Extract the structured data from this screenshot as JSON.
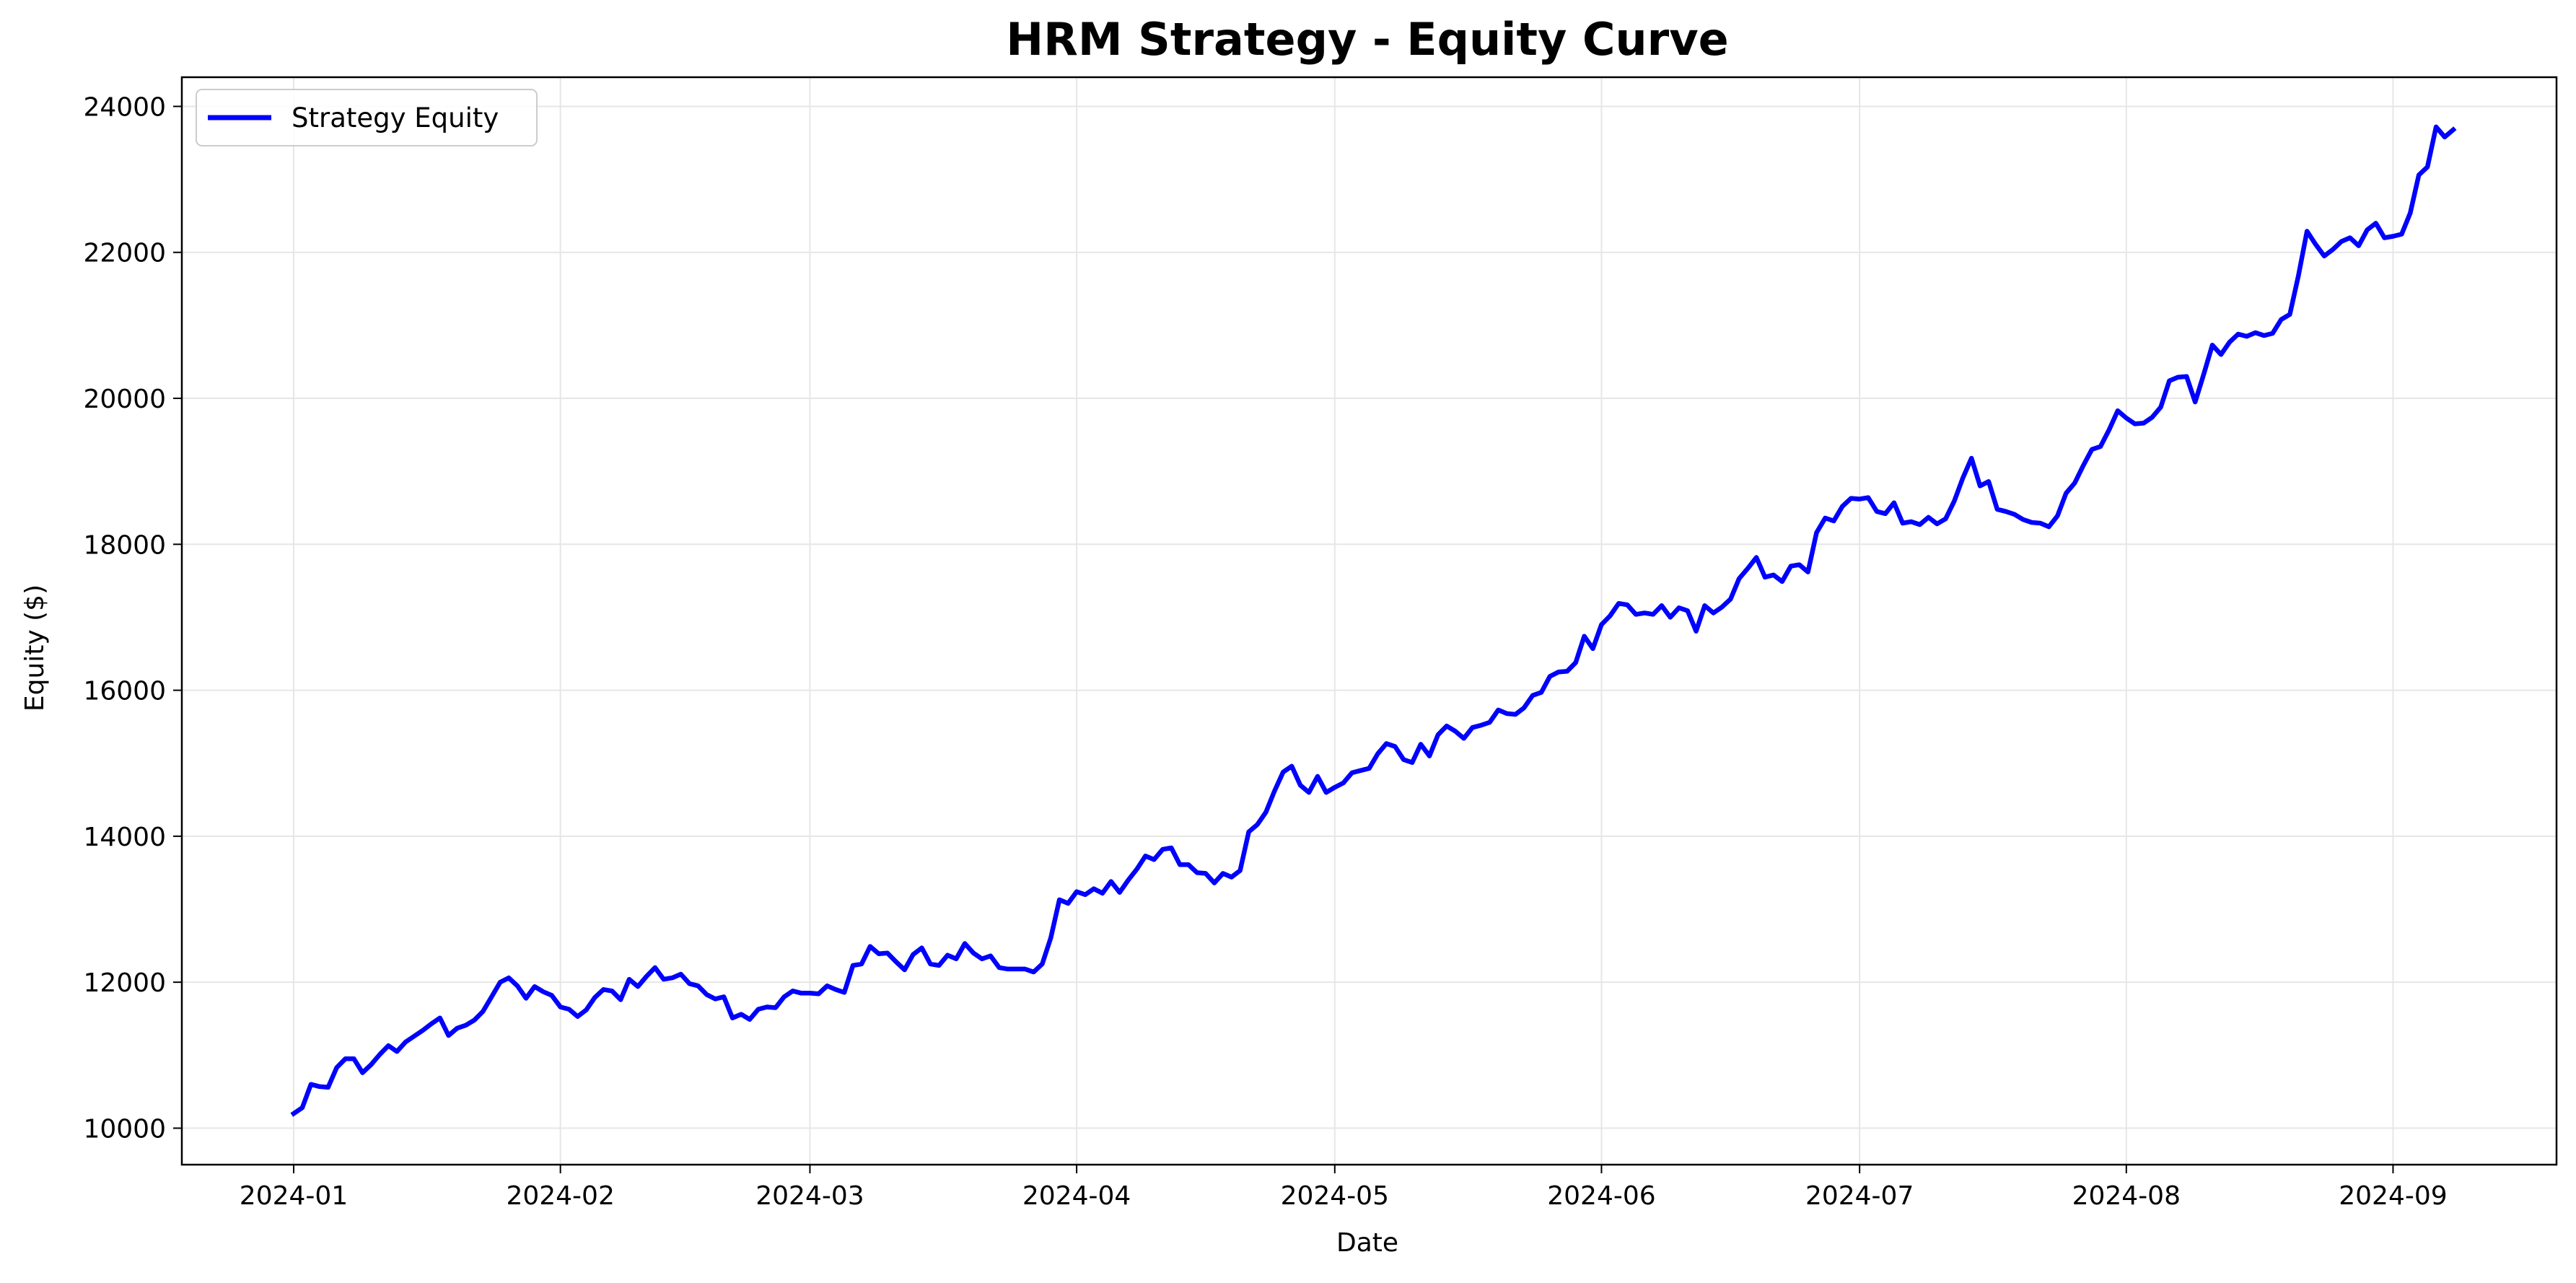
{
  "chart_data": {
    "type": "line",
    "title": "HRM Strategy - Equity Curve",
    "xlabel": "Date",
    "ylabel": "Equity ($)",
    "x_ticks": [
      "2024-01",
      "2024-02",
      "2024-03",
      "2024-04",
      "2024-05",
      "2024-06",
      "2024-07",
      "2024-08",
      "2024-09"
    ],
    "y_ticks": [
      10000,
      12000,
      14000,
      16000,
      18000,
      20000,
      22000,
      24000
    ],
    "xlim": [
      "2023-12-19",
      "2024-09-20"
    ],
    "ylim": [
      9500,
      24400
    ],
    "grid": true,
    "legend": {
      "position": "top-left",
      "entries": [
        "Strategy Equity"
      ]
    },
    "colors": {
      "line": "#0000ff",
      "grid": "#e6e6e6",
      "axes": "#000000"
    },
    "series": [
      {
        "name": "Strategy Equity",
        "x": [
          "2024-01-01",
          "2024-01-02",
          "2024-01-03",
          "2024-01-04",
          "2024-01-05",
          "2024-01-06",
          "2024-01-07",
          "2024-01-08",
          "2024-01-09",
          "2024-01-10",
          "2024-01-11",
          "2024-01-12",
          "2024-01-13",
          "2024-01-14",
          "2024-01-15",
          "2024-01-16",
          "2024-01-17",
          "2024-01-18",
          "2024-01-19",
          "2024-01-20",
          "2024-01-21",
          "2024-01-22",
          "2024-01-23",
          "2024-01-24",
          "2024-01-25",
          "2024-01-26",
          "2024-01-27",
          "2024-01-28",
          "2024-01-29",
          "2024-01-30",
          "2024-01-31",
          "2024-02-01",
          "2024-02-02",
          "2024-02-03",
          "2024-02-04",
          "2024-02-05",
          "2024-02-06",
          "2024-02-07",
          "2024-02-08",
          "2024-02-09",
          "2024-02-10",
          "2024-02-11",
          "2024-02-12",
          "2024-02-13",
          "2024-02-14",
          "2024-02-15",
          "2024-02-16",
          "2024-02-17",
          "2024-02-18",
          "2024-02-19",
          "2024-02-20",
          "2024-02-21",
          "2024-02-22",
          "2024-02-23",
          "2024-02-24",
          "2024-02-25",
          "2024-02-26",
          "2024-02-27",
          "2024-02-28",
          "2024-02-29",
          "2024-03-01",
          "2024-03-02",
          "2024-03-03",
          "2024-03-04",
          "2024-03-05",
          "2024-03-06",
          "2024-03-07",
          "2024-03-08",
          "2024-03-09",
          "2024-03-10",
          "2024-03-11",
          "2024-03-12",
          "2024-03-13",
          "2024-03-14",
          "2024-03-15",
          "2024-03-16",
          "2024-03-17",
          "2024-03-18",
          "2024-03-19",
          "2024-03-20",
          "2024-03-21",
          "2024-03-22",
          "2024-03-23",
          "2024-03-24",
          "2024-03-25",
          "2024-03-26",
          "2024-03-27",
          "2024-03-28",
          "2024-03-29",
          "2024-03-30",
          "2024-03-31",
          "2024-04-01",
          "2024-04-02",
          "2024-04-03",
          "2024-04-04",
          "2024-04-05",
          "2024-04-06",
          "2024-04-07",
          "2024-04-08",
          "2024-04-09",
          "2024-04-10",
          "2024-04-11",
          "2024-04-12",
          "2024-04-13",
          "2024-04-14",
          "2024-04-15",
          "2024-04-16",
          "2024-04-17",
          "2024-04-18",
          "2024-04-19",
          "2024-04-20",
          "2024-04-21",
          "2024-04-22",
          "2024-04-23",
          "2024-04-24",
          "2024-04-25",
          "2024-04-26",
          "2024-04-27",
          "2024-04-28",
          "2024-04-29",
          "2024-04-30",
          "2024-05-01",
          "2024-05-02",
          "2024-05-03",
          "2024-05-04",
          "2024-05-05",
          "2024-05-06",
          "2024-05-07",
          "2024-05-08",
          "2024-05-09",
          "2024-05-10",
          "2024-05-11",
          "2024-05-12",
          "2024-05-13",
          "2024-05-14",
          "2024-05-15",
          "2024-05-16",
          "2024-05-17",
          "2024-05-18",
          "2024-05-19",
          "2024-05-20",
          "2024-05-21",
          "2024-05-22",
          "2024-05-23",
          "2024-05-24",
          "2024-05-25",
          "2024-05-26",
          "2024-05-27",
          "2024-05-28",
          "2024-05-29",
          "2024-05-30",
          "2024-05-31",
          "2024-06-01",
          "2024-06-02",
          "2024-06-03",
          "2024-06-04",
          "2024-06-05",
          "2024-06-06",
          "2024-06-07",
          "2024-06-08",
          "2024-06-09",
          "2024-06-10",
          "2024-06-11",
          "2024-06-12",
          "2024-06-13",
          "2024-06-14",
          "2024-06-15",
          "2024-06-16",
          "2024-06-17",
          "2024-06-18",
          "2024-06-19",
          "2024-06-20",
          "2024-06-21",
          "2024-06-22",
          "2024-06-23",
          "2024-06-24",
          "2024-06-25",
          "2024-06-26",
          "2024-06-27",
          "2024-06-28",
          "2024-06-29",
          "2024-06-30",
          "2024-07-01",
          "2024-07-02",
          "2024-07-03",
          "2024-07-04",
          "2024-07-05",
          "2024-07-06",
          "2024-07-07",
          "2024-07-08",
          "2024-07-09",
          "2024-07-10",
          "2024-07-11",
          "2024-07-12",
          "2024-07-13",
          "2024-07-14",
          "2024-07-15",
          "2024-07-16",
          "2024-07-17",
          "2024-07-18",
          "2024-07-19",
          "2024-07-20",
          "2024-07-21",
          "2024-07-22",
          "2024-07-23",
          "2024-07-24",
          "2024-07-25",
          "2024-07-26",
          "2024-07-27",
          "2024-07-28",
          "2024-07-29",
          "2024-07-30",
          "2024-07-31",
          "2024-08-01",
          "2024-08-02",
          "2024-08-03",
          "2024-08-04",
          "2024-08-05",
          "2024-08-06",
          "2024-08-07",
          "2024-08-08",
          "2024-08-09",
          "2024-08-10",
          "2024-08-11",
          "2024-08-12",
          "2024-08-13",
          "2024-08-14",
          "2024-08-15",
          "2024-08-16",
          "2024-08-17",
          "2024-08-18",
          "2024-08-19",
          "2024-08-20",
          "2024-08-21",
          "2024-08-22",
          "2024-08-23",
          "2024-08-24",
          "2024-08-25",
          "2024-08-26",
          "2024-08-27",
          "2024-08-28",
          "2024-08-29",
          "2024-08-30",
          "2024-08-31",
          "2024-09-01",
          "2024-09-02",
          "2024-09-03",
          "2024-09-04",
          "2024-09-05",
          "2024-09-06",
          "2024-09-07",
          "2024-09-08"
        ],
        "y": [
          10200,
          10280,
          10600,
          10570,
          10560,
          10830,
          10950,
          10950,
          10760,
          10870,
          11010,
          11130,
          11050,
          11180,
          11260,
          11340,
          11430,
          11510,
          11270,
          11370,
          11410,
          11480,
          11600,
          11800,
          12000,
          12060,
          11950,
          11780,
          11940,
          11870,
          11820,
          11660,
          11630,
          11530,
          11620,
          11790,
          11900,
          11880,
          11760,
          12040,
          11940,
          12080,
          12200,
          12040,
          12060,
          12110,
          11980,
          11950,
          11830,
          11770,
          11800,
          11510,
          11560,
          11490,
          11630,
          11660,
          11650,
          11800,
          11880,
          11850,
          11850,
          11840,
          11950,
          11900,
          11860,
          12230,
          12250,
          12490,
          12390,
          12400,
          12280,
          12170,
          12380,
          12470,
          12250,
          12230,
          12370,
          12320,
          12530,
          12400,
          12320,
          12360,
          12200,
          12180,
          12180,
          12180,
          12140,
          12250,
          12610,
          13130,
          13080,
          13240,
          13200,
          13280,
          13220,
          13380,
          13230,
          13400,
          13550,
          13730,
          13680,
          13820,
          13840,
          13610,
          13610,
          13500,
          13490,
          13360,
          13490,
          13440,
          13530,
          14060,
          14160,
          14330,
          14620,
          14880,
          14960,
          14700,
          14600,
          14820,
          14600,
          14670,
          14730,
          14870,
          14900,
          14930,
          15130,
          15270,
          15230,
          15050,
          15010,
          15260,
          15100,
          15390,
          15510,
          15440,
          15340,
          15490,
          15520,
          15560,
          15730,
          15680,
          15670,
          15760,
          15930,
          15970,
          16190,
          16250,
          16260,
          16380,
          16740,
          16570,
          16900,
          17020,
          17190,
          17170,
          17040,
          17060,
          17040,
          17160,
          17000,
          17130,
          17090,
          16810,
          17160,
          17060,
          17140,
          17250,
          17530,
          17670,
          17820,
          17550,
          17580,
          17490,
          17700,
          17720,
          17620,
          18160,
          18360,
          18320,
          18520,
          18630,
          18620,
          18640,
          18450,
          18420,
          18570,
          18290,
          18310,
          18270,
          18370,
          18280,
          18350,
          18590,
          18910,
          19180,
          18800,
          18860,
          18480,
          18450,
          18410,
          18340,
          18300,
          18290,
          18240,
          18390,
          18700,
          18840,
          19080,
          19300,
          19340,
          19570,
          19830,
          19730,
          19650,
          19660,
          19740,
          19880,
          20240,
          20290,
          20300,
          19950,
          20330,
          20730,
          20600,
          20770,
          20880,
          20850,
          20900,
          20860,
          20890,
          21080,
          21150,
          21680,
          22290,
          22110,
          21950,
          22040,
          22150,
          22200,
          22090,
          22310,
          22400,
          22200,
          22220,
          22250,
          22540,
          23060,
          23170,
          23720,
          23580,
          23680
        ]
      }
    ]
  }
}
